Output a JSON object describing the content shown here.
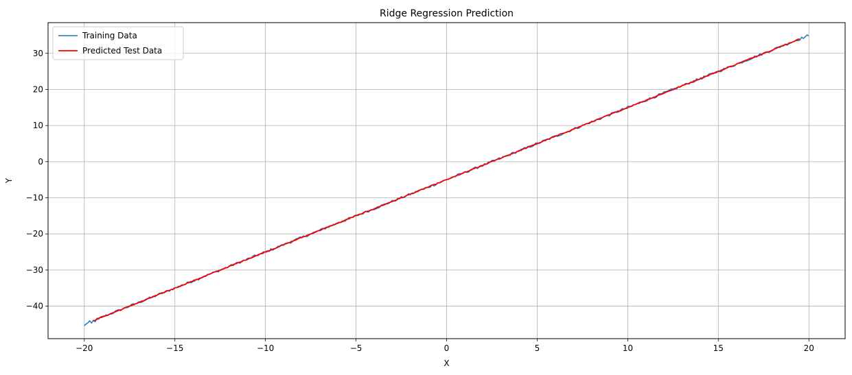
{
  "chart_data": {
    "type": "line",
    "title": "Ridge Regression Prediction",
    "xlabel": "X",
    "ylabel": "Y",
    "xlim": [
      -22,
      22
    ],
    "ylim": [
      -49,
      38.5
    ],
    "xticks": [
      -20,
      -15,
      -10,
      -5,
      0,
      5,
      10,
      15,
      20
    ],
    "xtick_labels": [
      "−20",
      "−15",
      "−10",
      "−5",
      "0",
      "5",
      "10",
      "15",
      "20"
    ],
    "yticks": [
      -40,
      -30,
      -20,
      -10,
      0,
      10,
      20,
      30
    ],
    "ytick_labels": [
      "−40",
      "−30",
      "−20",
      "−10",
      "0",
      "10",
      "20",
      "30"
    ],
    "grid": true,
    "legend_position": "upper-left",
    "series": [
      {
        "name": "Training Data",
        "color": "#1f77b4",
        "x_range": [
          -20,
          20
        ],
        "model": {
          "slope": 2,
          "intercept": -5
        },
        "noise_amplitude": 0.35,
        "points": [
          [
            -20,
            -45.4
          ],
          [
            -19.8,
            -44.6
          ],
          [
            -19.6,
            -44.7
          ],
          [
            -19.4,
            -44.3
          ],
          [
            -19.2,
            -43.6
          ],
          [
            20,
            34.8
          ]
        ]
      },
      {
        "name": "Predicted Test Data",
        "color": "#ff0000",
        "x_range": [
          -19.5,
          19.5
        ],
        "model": {
          "slope": 2,
          "intercept": -5
        },
        "noise_amplitude": 0.12
      }
    ]
  }
}
